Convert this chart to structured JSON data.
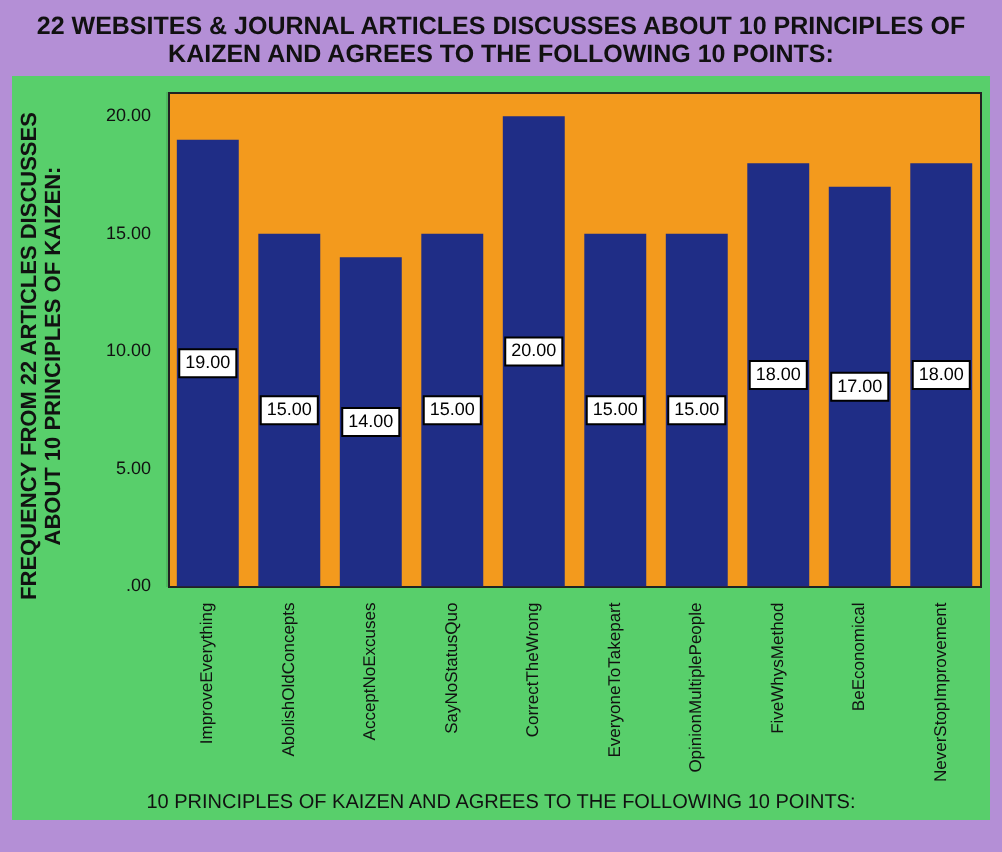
{
  "chart_data": {
    "type": "bar",
    "title": "22 WEBSITES & JOURNAL ARTICLES DISCUSSES ABOUT 10 PRINCIPLES OF KAIZEN AND AGREES TO THE FOLLOWING 10 POINTS:",
    "xlabel": "10 PRINCIPLES OF KAIZEN AND AGREES TO THE FOLLOWING 10 POINTS:",
    "ylabel": "FREQUENCY FROM 22 ARTICLES DISCUSSES ABOUT 10 PRINCIPLES OF KAIZEN:",
    "categories": [
      "ImproveEverything",
      "AbolishOldConcepts",
      "AcceptNoExcuses",
      "SayNoStatusQuo",
      "CorrectTheWrong",
      "EveryoneToTakepart",
      "OpinionMultiplePeople",
      "FiveWhysMethod",
      "BeEconomical",
      "NeverStopImprovement"
    ],
    "values": [
      19,
      15,
      14,
      15,
      20,
      15,
      15,
      18,
      17,
      18
    ],
    "value_labels": [
      "19.00",
      "15.00",
      "14.00",
      "15.00",
      "20.00",
      "15.00",
      "15.00",
      "18.00",
      "17.00",
      "18.00"
    ],
    "color": "#1f2d86",
    "ylim": [
      0,
      21
    ],
    "yticks": [
      {
        "value": 0,
        "label": ".00"
      },
      {
        "value": 5,
        "label": "5.00"
      },
      {
        "value": 10,
        "label": "10.00"
      },
      {
        "value": 15,
        "label": "15.00"
      },
      {
        "value": 20,
        "label": "20.00"
      }
    ],
    "grid": false,
    "legend": false
  }
}
